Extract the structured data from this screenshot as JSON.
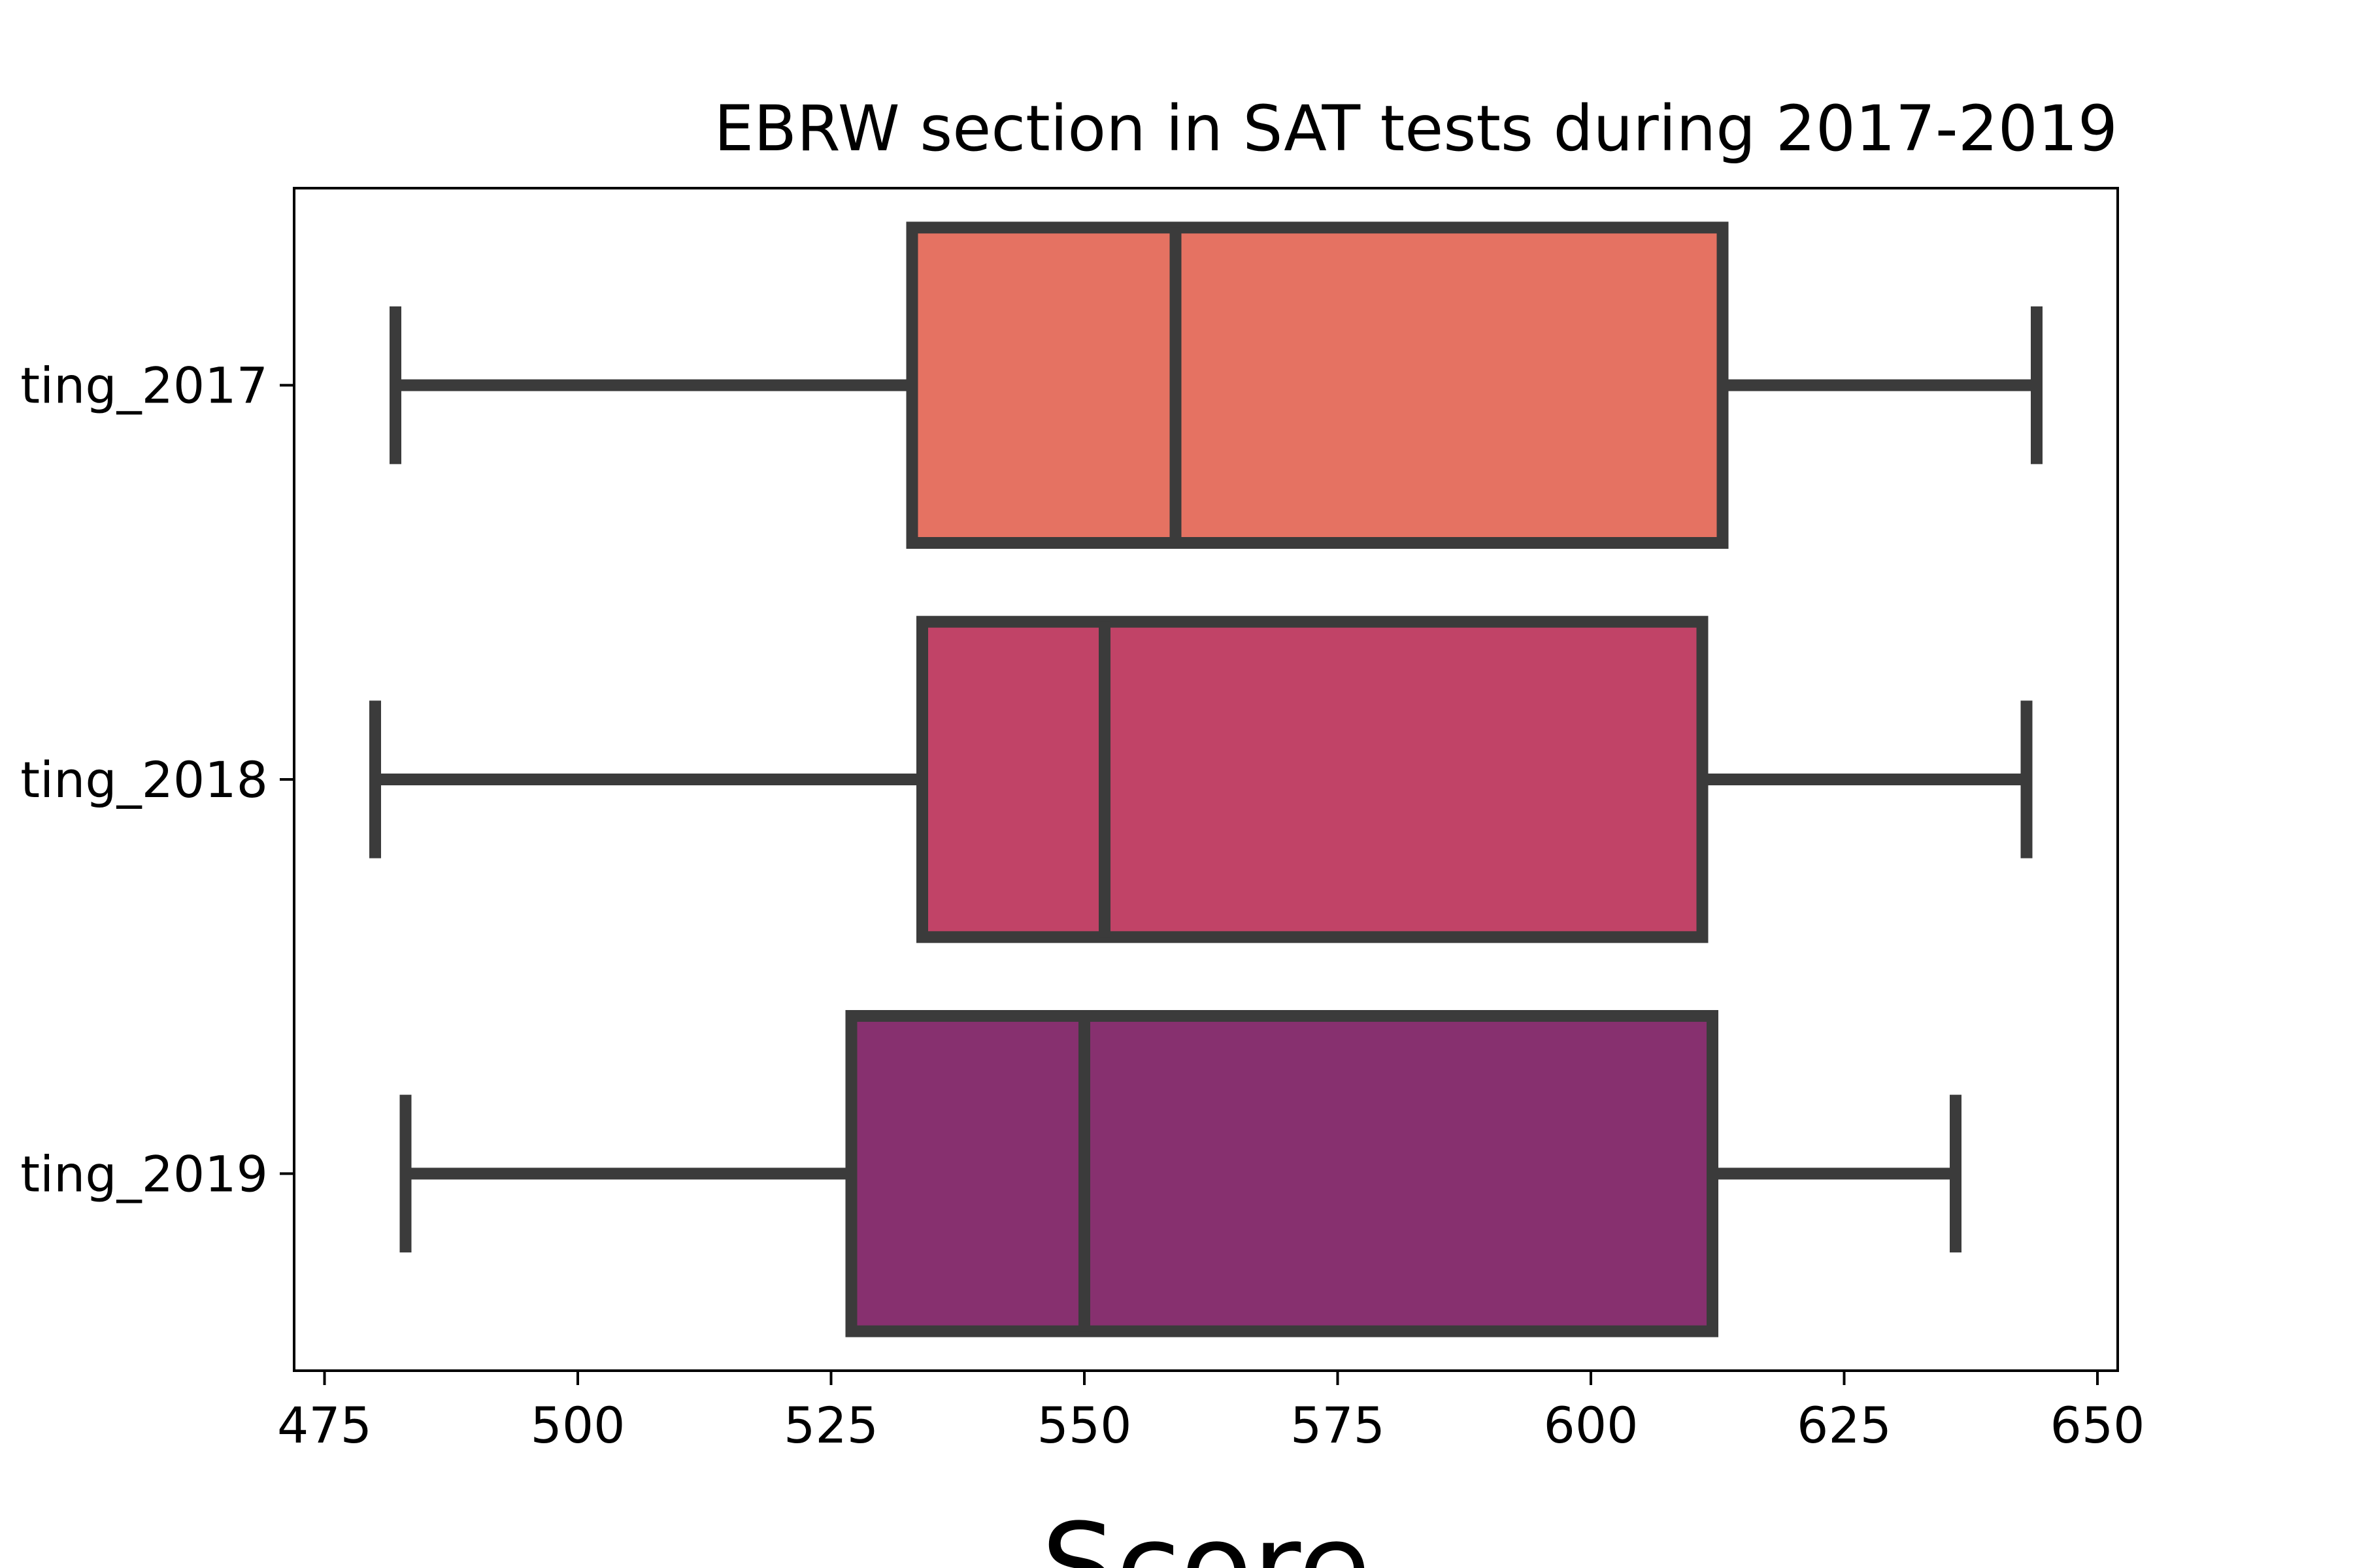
{
  "chart_data": {
    "type": "boxplot",
    "orientation": "horizontal",
    "title": "EBRW section in SAT tests during 2017-2019",
    "xlabel": "Score",
    "ylabel": "",
    "xlim": [
      472,
      652
    ],
    "xticks": [
      475,
      500,
      525,
      550,
      575,
      600,
      625,
      650
    ],
    "categories": [
      "ting_2017",
      "ting_2018",
      "ting_2019"
    ],
    "boxes": [
      {
        "category": "ting_2017",
        "whisker_low": 482,
        "q1": 533,
        "median": 559,
        "q3": 613,
        "whisker_high": 644,
        "color": "#e57262"
      },
      {
        "category": "ting_2018",
        "whisker_low": 480,
        "q1": 534,
        "median": 552,
        "q3": 611,
        "whisker_high": 643,
        "color": "#c14367"
      },
      {
        "category": "ting_2019",
        "whisker_low": 483,
        "q1": 527,
        "median": 550,
        "q3": 612,
        "whisker_high": 636,
        "color": "#87306f"
      }
    ],
    "line_color": "#3b3b3b",
    "grid": false,
    "legend": "none"
  }
}
